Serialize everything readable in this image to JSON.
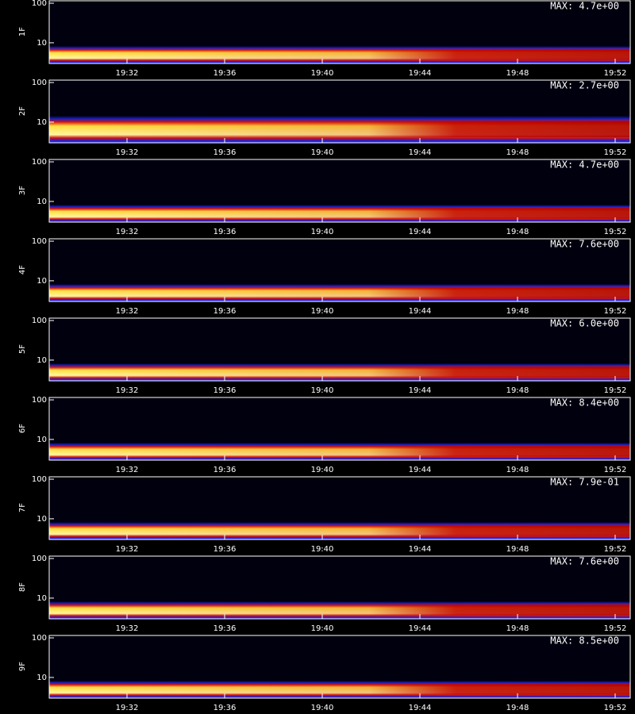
{
  "chart_data": [
    {
      "type": "heatmap",
      "ylabel": "1F",
      "annotation": "MAX: 4.7e+00",
      "xticks": [
        "19:32",
        "19:36",
        "19:40",
        "19:44",
        "19:48",
        "19:52"
      ],
      "yticks": [
        10,
        100
      ],
      "ylim": [
        3,
        115
      ],
      "log_y": true
    },
    {
      "type": "heatmap",
      "ylabel": "2F",
      "annotation": "MAX: 2.7e+00",
      "xticks": [
        "19:32",
        "19:36",
        "19:40",
        "19:44",
        "19:48",
        "19:52"
      ],
      "yticks": [
        10,
        100
      ],
      "ylim": [
        3,
        115
      ],
      "log_y": true
    },
    {
      "type": "heatmap",
      "ylabel": "3F",
      "annotation": "MAX: 4.7e+00",
      "xticks": [
        "19:32",
        "19:36",
        "19:40",
        "19:44",
        "19:48",
        "19:52"
      ],
      "yticks": [
        10,
        100
      ],
      "ylim": [
        3,
        115
      ],
      "log_y": true
    },
    {
      "type": "heatmap",
      "ylabel": "4F",
      "annotation": "MAX: 7.6e+00",
      "xticks": [
        "19:32",
        "19:36",
        "19:40",
        "19:44",
        "19:48",
        "19:52"
      ],
      "yticks": [
        10,
        100
      ],
      "ylim": [
        3,
        115
      ],
      "log_y": true
    },
    {
      "type": "heatmap",
      "ylabel": "5F",
      "annotation": "MAX: 6.0e+00",
      "xticks": [
        "19:32",
        "19:36",
        "19:40",
        "19:44",
        "19:48",
        "19:52"
      ],
      "yticks": [
        10,
        100
      ],
      "ylim": [
        3,
        115
      ],
      "log_y": true
    },
    {
      "type": "heatmap",
      "ylabel": "6F",
      "annotation": "MAX: 8.4e+00",
      "xticks": [
        "19:32",
        "19:36",
        "19:40",
        "19:44",
        "19:48",
        "19:52"
      ],
      "yticks": [
        10,
        100
      ],
      "ylim": [
        3,
        115
      ],
      "log_y": true
    },
    {
      "type": "heatmap",
      "ylabel": "7F",
      "annotation": "MAX: 7.9e-01",
      "xticks": [
        "19:32",
        "19:36",
        "19:40",
        "19:44",
        "19:48",
        "19:52"
      ],
      "yticks": [
        10,
        100
      ],
      "ylim": [
        3,
        115
      ],
      "log_y": true
    },
    {
      "type": "heatmap",
      "ylabel": "8F",
      "annotation": "MAX: 7.6e+00",
      "xticks": [
        "19:32",
        "19:36",
        "19:40",
        "19:44",
        "19:48",
        "19:52"
      ],
      "yticks": [
        10,
        100
      ],
      "ylim": [
        3,
        115
      ],
      "log_y": true
    },
    {
      "type": "heatmap",
      "ylabel": "9F",
      "annotation": "MAX: 8.5e+00",
      "xticks": [
        "19:32",
        "19:36",
        "19:40",
        "19:44",
        "19:48",
        "19:52"
      ],
      "yticks": [
        10,
        100
      ],
      "ylim": [
        3,
        115
      ],
      "log_y": true
    }
  ]
}
